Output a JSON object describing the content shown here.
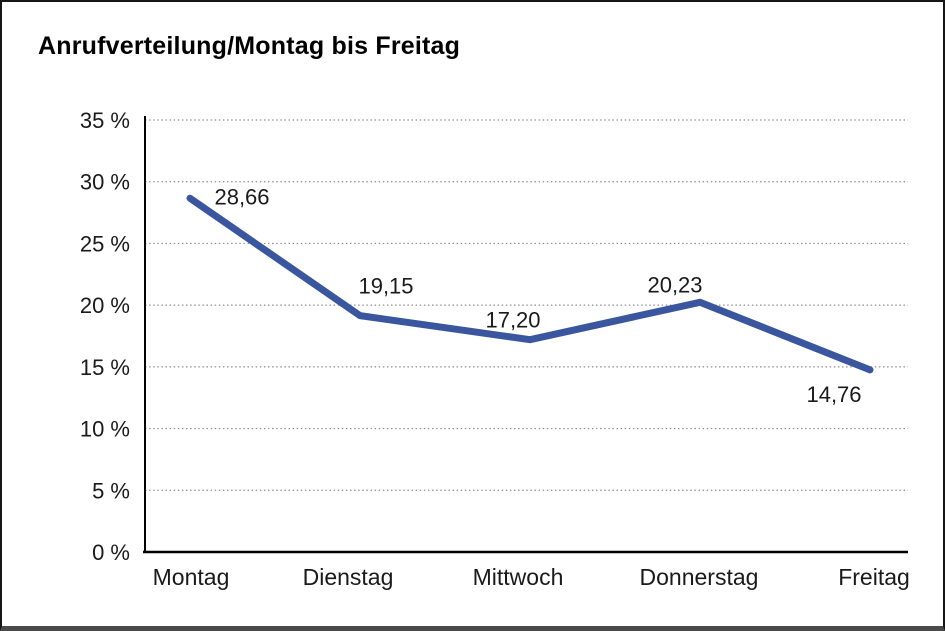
{
  "chart_data": {
    "type": "line",
    "title": "Anrufverteilung/Montag bis Freitag",
    "categories": [
      "Montag",
      "Dienstag",
      "Mittwoch",
      "Donnerstag",
      "Freitag"
    ],
    "values": [
      28.66,
      19.15,
      17.2,
      20.23,
      14.76
    ],
    "value_labels": [
      "28,66",
      "19,15",
      "17,20",
      "20,23",
      "14,76"
    ],
    "y_ticks": [
      {
        "value": 35,
        "label": "35 %"
      },
      {
        "value": 30,
        "label": "30 %"
      },
      {
        "value": 25,
        "label": "25 %"
      },
      {
        "value": 20,
        "label": "20 %"
      },
      {
        "value": 15,
        "label": "15 %"
      },
      {
        "value": 10,
        "label": "10 %"
      },
      {
        "value": 5,
        "label": "5 %"
      },
      {
        "value": 0,
        "label": "0 %"
      }
    ],
    "ylim": [
      0,
      35
    ],
    "xlabel": "",
    "ylabel": "",
    "grid": "dotted-horizontal",
    "legend": "none",
    "line_color": "#39569F",
    "grid_color": "#8f8f8f",
    "axis_color": "#000000",
    "text_color": "#1a1a1a"
  }
}
